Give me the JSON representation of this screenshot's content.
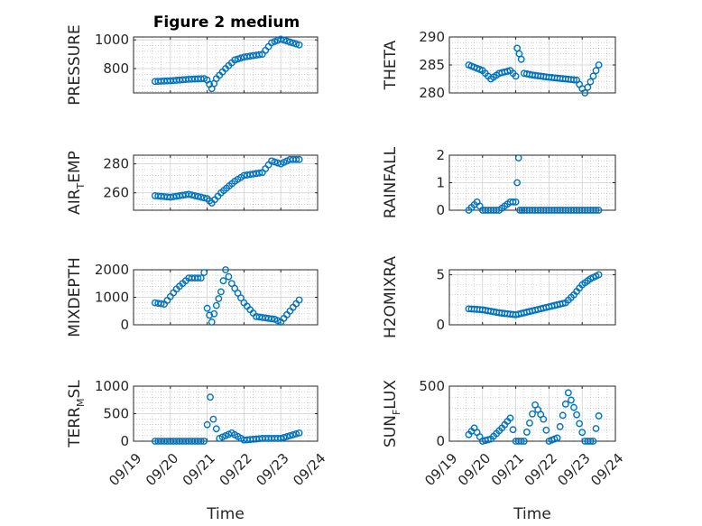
{
  "figure": {
    "title": "Figure 2 medium"
  },
  "colors": {
    "marker": "#0072BD",
    "axis": "#262626",
    "grid": "#9a9a9a"
  },
  "chart_data": [
    {
      "id": "pressure",
      "type": "scatter",
      "title": "Figure 2 medium",
      "ylabel": "PRESSURE",
      "ylabel_sub": "",
      "ylabel_tail": "",
      "xlabel": "",
      "xlim": [
        "09/19",
        "09/24"
      ],
      "ylim": [
        630,
        1020
      ],
      "yticks": [
        800,
        1000
      ],
      "x": [
        "09/19 14:00",
        "09/20 00:00",
        "09/20 12:00",
        "09/20 22:00",
        "09/21 00:00",
        "09/21 03:00",
        "09/21 06:00",
        "09/21 12:00",
        "09/21 18:00",
        "09/22 00:00",
        "09/22 12:00",
        "09/22 18:00",
        "09/23 00:00",
        "09/23 06:00",
        "09/23 12:00"
      ],
      "y": [
        710,
        715,
        725,
        730,
        720,
        660,
        730,
        800,
        860,
        880,
        900,
        980,
        1005,
        985,
        965
      ],
      "grid": true,
      "minor_grid": true
    },
    {
      "id": "theta",
      "type": "scatter",
      "title": "",
      "ylabel": "THETA",
      "ylabel_sub": "",
      "ylabel_tail": "",
      "xlabel": "",
      "xlim": [
        "09/19",
        "09/24"
      ],
      "ylim": [
        280,
        290
      ],
      "yticks": [
        280,
        285,
        290
      ],
      "x": [
        "09/19 14:00",
        "09/20 00:00",
        "09/20 06:00",
        "09/20 12:00",
        "09/20 20:00",
        "09/21 00:00",
        "09/21 01:00",
        "09/21 04:00",
        "09/21 06:00",
        "09/21 12:00",
        "09/22 00:00",
        "09/22 12:00",
        "09/22 20:00",
        "09/23 02:00",
        "09/23 08:00",
        "09/23 12:00"
      ],
      "y": [
        285,
        284,
        282.5,
        283.5,
        284,
        283,
        288,
        286,
        283.5,
        283.2,
        282.8,
        282.5,
        282.3,
        280,
        283,
        285
      ],
      "grid": true,
      "minor_grid": true
    },
    {
      "id": "air_temp",
      "type": "scatter",
      "title": "",
      "ylabel": "AIR",
      "ylabel_sub": "T",
      "ylabel_tail": "EMP",
      "xlabel": "",
      "xlim": [
        "09/19",
        "09/24"
      ],
      "ylim": [
        248,
        286
      ],
      "yticks": [
        260,
        280
      ],
      "x": [
        "09/19 14:00",
        "09/20 00:00",
        "09/20 12:00",
        "09/21 00:00",
        "09/21 03:00",
        "09/21 09:00",
        "09/21 18:00",
        "09/22 00:00",
        "09/22 12:00",
        "09/22 18:00",
        "09/23 00:00",
        "09/23 06:00",
        "09/23 12:00"
      ],
      "y": [
        258,
        257,
        259,
        256,
        253,
        260,
        268,
        272,
        274,
        282,
        280,
        283,
        283
      ],
      "grid": true,
      "minor_grid": true
    },
    {
      "id": "rainfall",
      "type": "scatter",
      "title": "",
      "ylabel": "RAINFALL",
      "ylabel_sub": "",
      "ylabel_tail": "",
      "xlabel": "",
      "xlim": [
        "09/19",
        "09/24"
      ],
      "ylim": [
        0,
        2
      ],
      "yticks": [
        0,
        1,
        2
      ],
      "x": [
        "09/19 14:00",
        "09/19 20:00",
        "09/20 00:00",
        "09/20 12:00",
        "09/20 20:00",
        "09/21 00:00",
        "09/21 01:00",
        "09/21 02:00",
        "09/21 03:00",
        "09/21 06:00",
        "09/22 00:00",
        "09/23 00:00",
        "09/23 12:00"
      ],
      "y": [
        0,
        0.3,
        0,
        0,
        0.3,
        0.3,
        1.0,
        1.9,
        0,
        0,
        0,
        0,
        0
      ],
      "grid": true,
      "minor_grid": true
    },
    {
      "id": "mixdepth",
      "type": "scatter",
      "title": "",
      "ylabel": "MIXDEPTH",
      "ylabel_sub": "",
      "ylabel_tail": "",
      "xlabel": "",
      "xlim": [
        "09/19",
        "09/24"
      ],
      "ylim": [
        0,
        2000
      ],
      "yticks": [
        0,
        1000,
        2000
      ],
      "x": [
        "09/19 14:00",
        "09/19 20:00",
        "09/20 04:00",
        "09/20 12:00",
        "09/20 20:00",
        "09/20 22:00",
        "09/21 00:00",
        "09/21 03:00",
        "09/21 06:00",
        "09/21 09:00",
        "09/21 12:00",
        "09/21 16:00",
        "09/22 00:00",
        "09/22 08:00",
        "09/22 20:00",
        "09/23 00:00",
        "09/23 06:00",
        "09/23 12:00"
      ],
      "y": [
        800,
        750,
        1300,
        1700,
        1700,
        1900,
        600,
        100,
        700,
        1200,
        2000,
        1500,
        800,
        300,
        200,
        100,
        500,
        900
      ],
      "grid": true,
      "minor_grid": true
    },
    {
      "id": "h2omixra",
      "type": "scatter",
      "title": "",
      "ylabel": "H2OMIXRA",
      "ylabel_sub": "",
      "ylabel_tail": "",
      "xlabel": "",
      "xlim": [
        "09/19",
        "09/24"
      ],
      "ylim": [
        0,
        5.5
      ],
      "yticks": [
        0,
        5
      ],
      "x": [
        "09/19 14:00",
        "09/20 00:00",
        "09/20 12:00",
        "09/21 00:00",
        "09/21 12:00",
        "09/22 00:00",
        "09/22 12:00",
        "09/22 18:00",
        "09/23 00:00",
        "09/23 06:00",
        "09/23 12:00"
      ],
      "y": [
        1.6,
        1.5,
        1.2,
        1.0,
        1.4,
        1.8,
        2.2,
        3.0,
        4.0,
        4.6,
        5.0
      ],
      "grid": true,
      "minor_grid": true
    },
    {
      "id": "terr_msl",
      "type": "scatter",
      "title": "",
      "ylabel": "TERR",
      "ylabel_sub": "M",
      "ylabel_tail": "SL",
      "xlabel": "Time",
      "xlim": [
        "09/19",
        "09/24"
      ],
      "ylim": [
        0,
        1000
      ],
      "yticks": [
        0,
        500,
        1000
      ],
      "x": [
        "09/19 14:00",
        "09/20 00:00",
        "09/20 12:00",
        "09/20 22:00",
        "09/21 00:00",
        "09/21 02:00",
        "09/21 04:00",
        "09/21 08:00",
        "09/21 16:00",
        "09/22 00:00",
        "09/22 12:00",
        "09/23 00:00",
        "09/23 06:00",
        "09/23 12:00"
      ],
      "y": [
        0,
        0,
        0,
        0,
        300,
        800,
        400,
        50,
        150,
        20,
        50,
        50,
        100,
        150
      ],
      "xticks": [
        "09/19",
        "09/20",
        "09/21",
        "09/22",
        "09/23",
        "09/24"
      ],
      "grid": true,
      "minor_grid": true
    },
    {
      "id": "sun_flux",
      "type": "scatter",
      "title": "",
      "ylabel": "SUN",
      "ylabel_sub": "F",
      "ylabel_tail": "LUX",
      "xlabel": "Time",
      "xlim": [
        "09/19",
        "09/24"
      ],
      "ylim": [
        0,
        500
      ],
      "yticks": [
        0,
        500
      ],
      "x": [
        "09/19 14:00",
        "09/19 18:00",
        "09/20 00:00",
        "09/20 06:00",
        "09/20 14:00",
        "09/20 20:00",
        "09/21 00:00",
        "09/21 06:00",
        "09/21 14:00",
        "09/21 20:00",
        "09/22 00:00",
        "09/22 06:00",
        "09/22 14:00",
        "09/22 20:00",
        "09/23 02:00",
        "09/23 08:00",
        "09/23 12:00"
      ],
      "y": [
        60,
        120,
        0,
        20,
        120,
        210,
        0,
        0,
        330,
        200,
        0,
        30,
        440,
        240,
        0,
        0,
        230
      ],
      "xticks": [
        "09/19",
        "09/20",
        "09/21",
        "09/22",
        "09/23",
        "09/24"
      ],
      "grid": true,
      "minor_grid": true
    }
  ]
}
